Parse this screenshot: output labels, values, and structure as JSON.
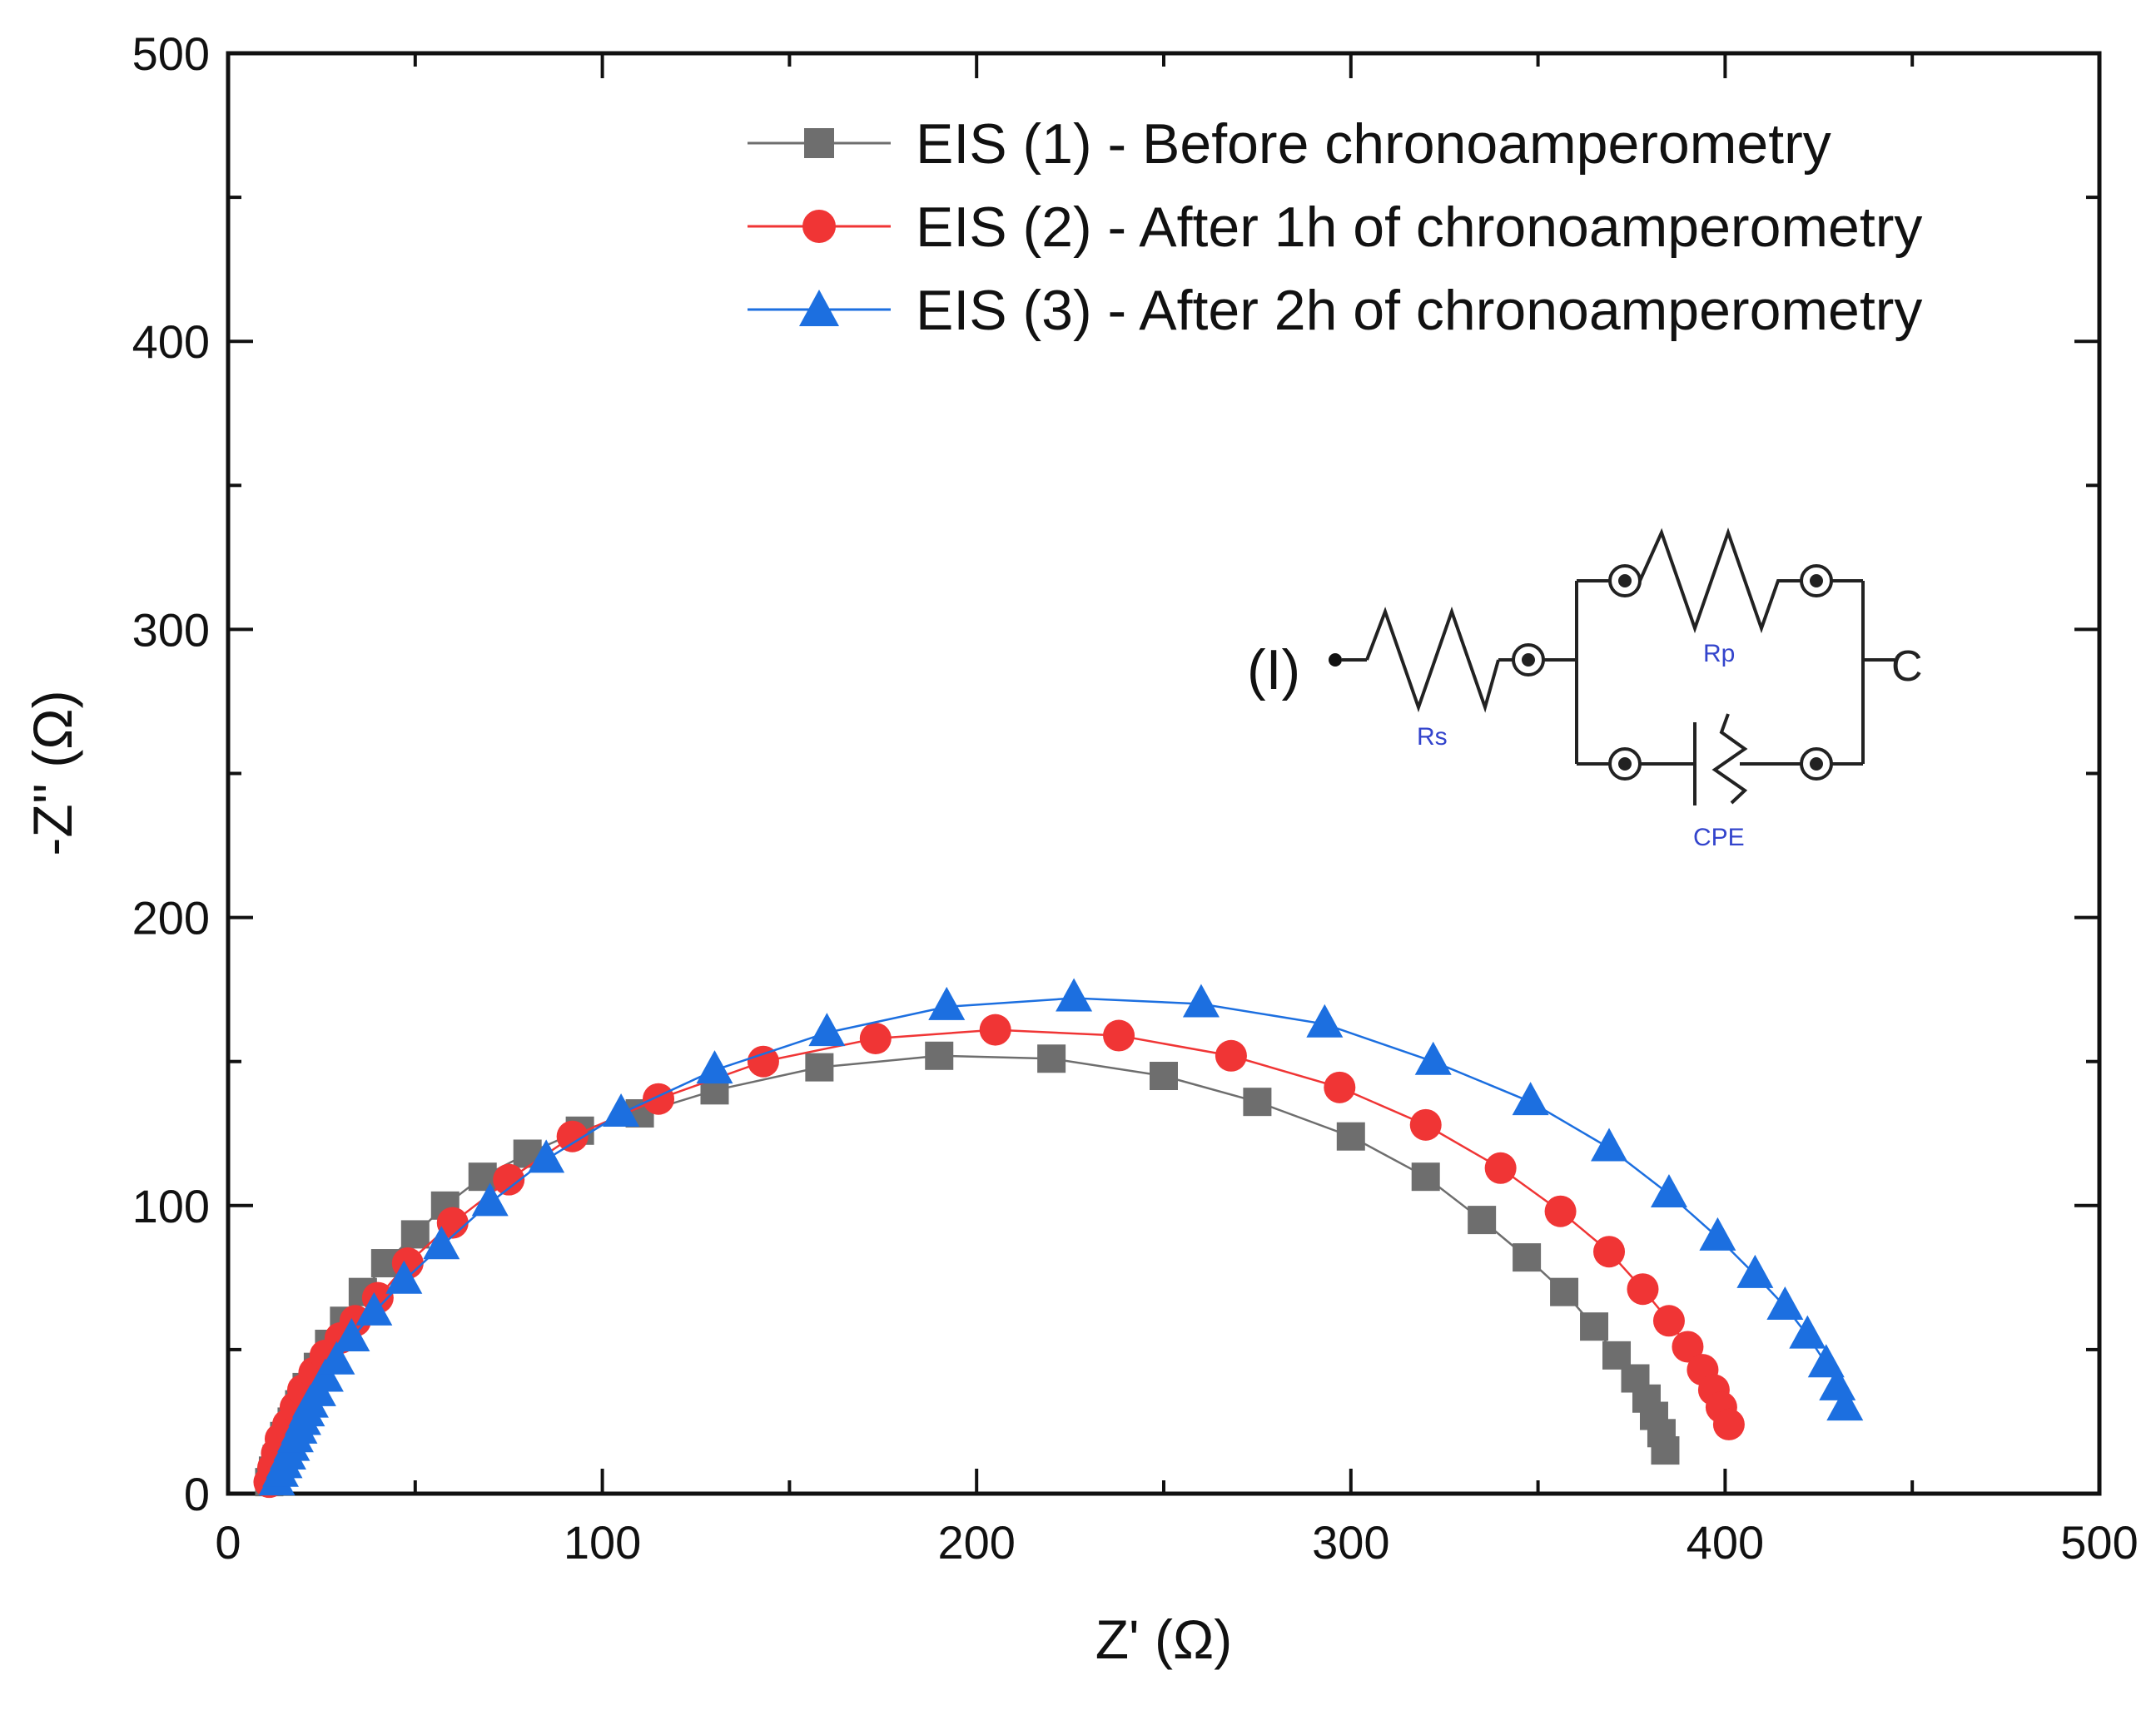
{
  "chart_data": {
    "type": "scatter",
    "xlabel": "Z' (Ω)",
    "ylabel": "-Z'' (Ω)",
    "xlim": [
      0,
      500
    ],
    "ylim": [
      0,
      500
    ],
    "xticks": [
      "0",
      "100",
      "200",
      "300",
      "400",
      "500"
    ],
    "yticks": [
      "0",
      "100",
      "200",
      "300",
      "400",
      "500"
    ],
    "legend_position": "top-right",
    "series": [
      {
        "name": "EIS (1) - Before chronoamperometry",
        "marker": "square",
        "color": "#6e6e6e",
        "x": [
          11,
          12,
          13,
          14,
          15,
          17,
          19,
          21,
          24,
          27,
          31,
          36,
          42,
          50,
          58,
          68,
          80,
          94,
          110,
          130,
          158,
          190,
          220,
          250,
          275,
          300,
          320,
          335,
          347,
          357,
          365,
          371,
          376,
          379,
          381,
          383,
          384
        ],
        "y": [
          4,
          8,
          12,
          16,
          20,
          25,
          31,
          37,
          44,
          52,
          60,
          70,
          80,
          90,
          100,
          110,
          118,
          126,
          132,
          140,
          148,
          152,
          151,
          145,
          136,
          124,
          110,
          95,
          82,
          70,
          58,
          48,
          40,
          33,
          27,
          21,
          15
        ]
      },
      {
        "name": "EIS (2) - After 1h of chronoamperometry",
        "marker": "circle",
        "color": "#f03535",
        "x": [
          11,
          12,
          13,
          14,
          16,
          18,
          20,
          23,
          26,
          30,
          34,
          40,
          48,
          60,
          75,
          92,
          115,
          143,
          173,
          205,
          238,
          268,
          297,
          320,
          340,
          356,
          369,
          378,
          385,
          390,
          394,
          397,
          399,
          401
        ],
        "y": [
          4,
          9,
          14,
          19,
          24,
          30,
          36,
          42,
          48,
          54,
          60,
          68,
          80,
          94,
          109,
          124,
          137,
          150,
          158,
          161,
          159,
          152,
          141,
          128,
          113,
          98,
          84,
          71,
          60,
          51,
          43,
          36,
          30,
          24
        ]
      },
      {
        "name": "EIS (3) - After 2h of chronoamperometry",
        "marker": "triangle",
        "color": "#1c6fe0",
        "x": [
          13,
          14,
          15,
          16,
          17,
          18,
          19,
          20,
          21,
          22,
          24,
          26,
          29,
          33,
          39,
          47,
          57,
          70,
          85,
          105,
          130,
          160,
          192,
          226,
          260,
          293,
          322,
          348,
          369,
          385,
          398,
          408,
          416,
          422,
          427,
          430,
          432
        ],
        "y": [
          4,
          7,
          10,
          13,
          16,
          19,
          22,
          25,
          28,
          31,
          35,
          40,
          46,
          54,
          63,
          74,
          86,
          101,
          116,
          132,
          147,
          160,
          169,
          172,
          170,
          163,
          150,
          136,
          120,
          104,
          89,
          76,
          65,
          55,
          45,
          37,
          30
        ]
      }
    ],
    "inset_circuit": {
      "input_label": "(I)",
      "components": [
        "Rs",
        "Rp",
        "CPE"
      ],
      "output_label": "C"
    }
  }
}
